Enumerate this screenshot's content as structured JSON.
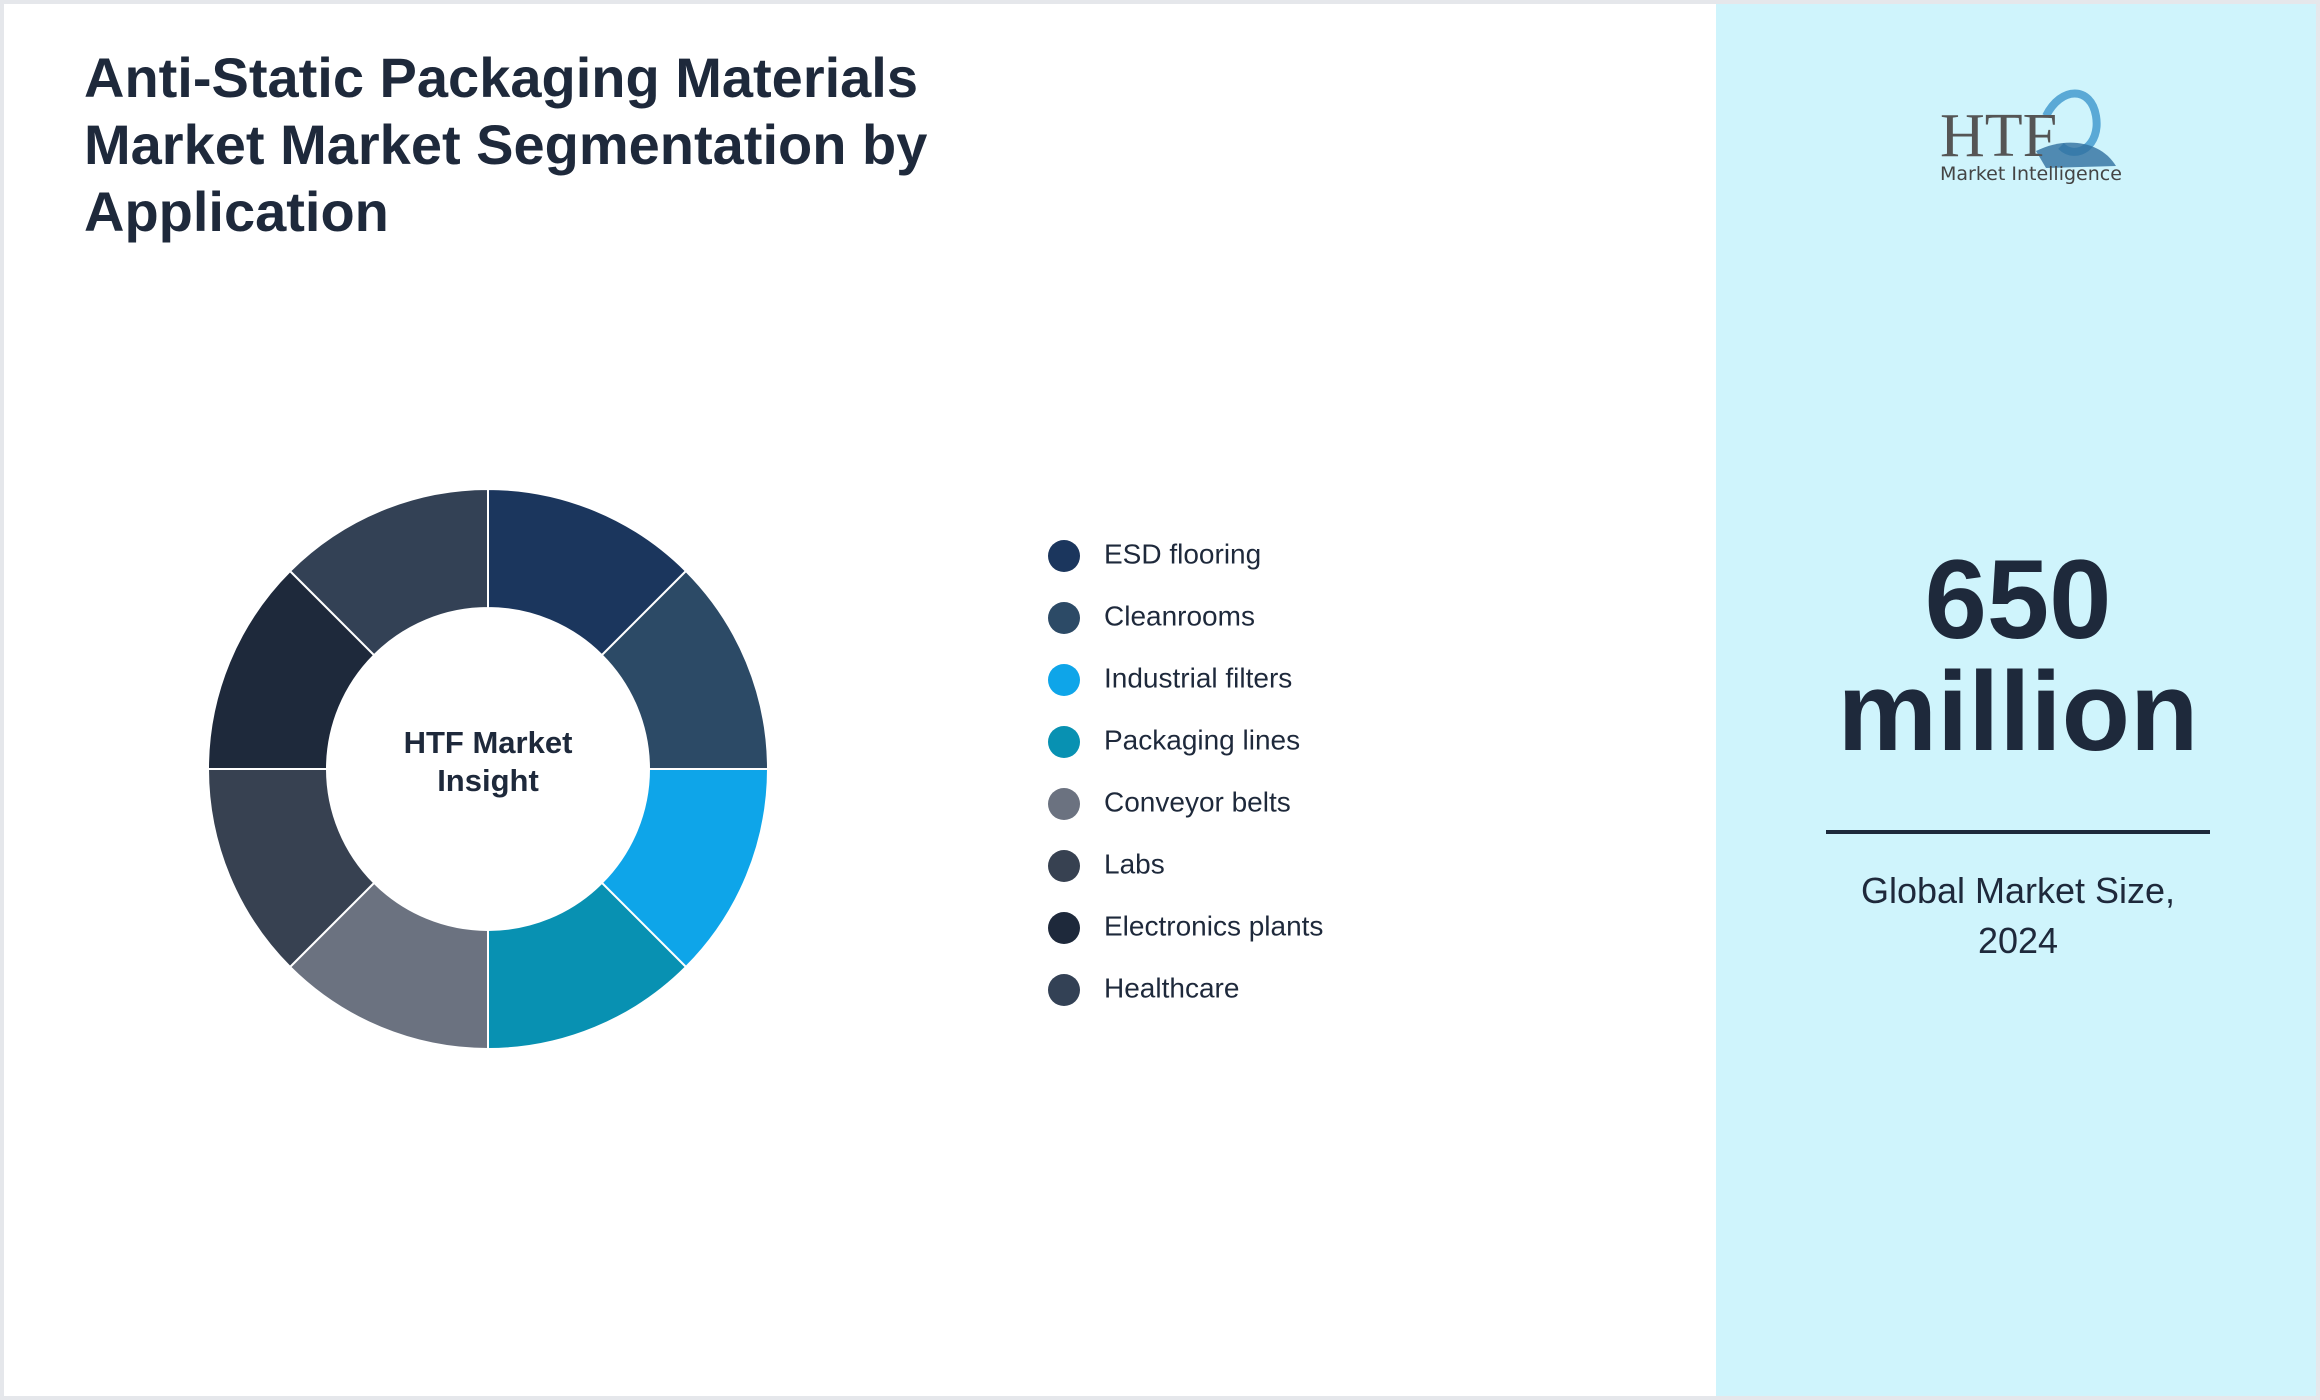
{
  "chart_data": {
    "type": "donut",
    "title": "Anti-Static Packaging Materials Market Market Segmentation by Application",
    "center_label": "HTF Market Insight",
    "categories": [
      "ESD flooring",
      "Cleanrooms",
      "Industrial filters",
      "Packaging lines",
      "Conveyor belts",
      "Labs",
      "Electronics plants",
      "Healthcare"
    ],
    "values": [
      12.5,
      12.5,
      12.5,
      12.5,
      12.5,
      12.5,
      12.5,
      12.5
    ],
    "colors": [
      "#1b365d",
      "#2c4a66",
      "#0ea5e9",
      "#0891b2",
      "#6b7280",
      "#374151",
      "#1e293b",
      "#334155"
    ]
  },
  "sidebar": {
    "logo": "HTF",
    "logo_subtitle": "Market Intelligence",
    "value": "650 million",
    "caption": "Global Market Size, 2024"
  }
}
